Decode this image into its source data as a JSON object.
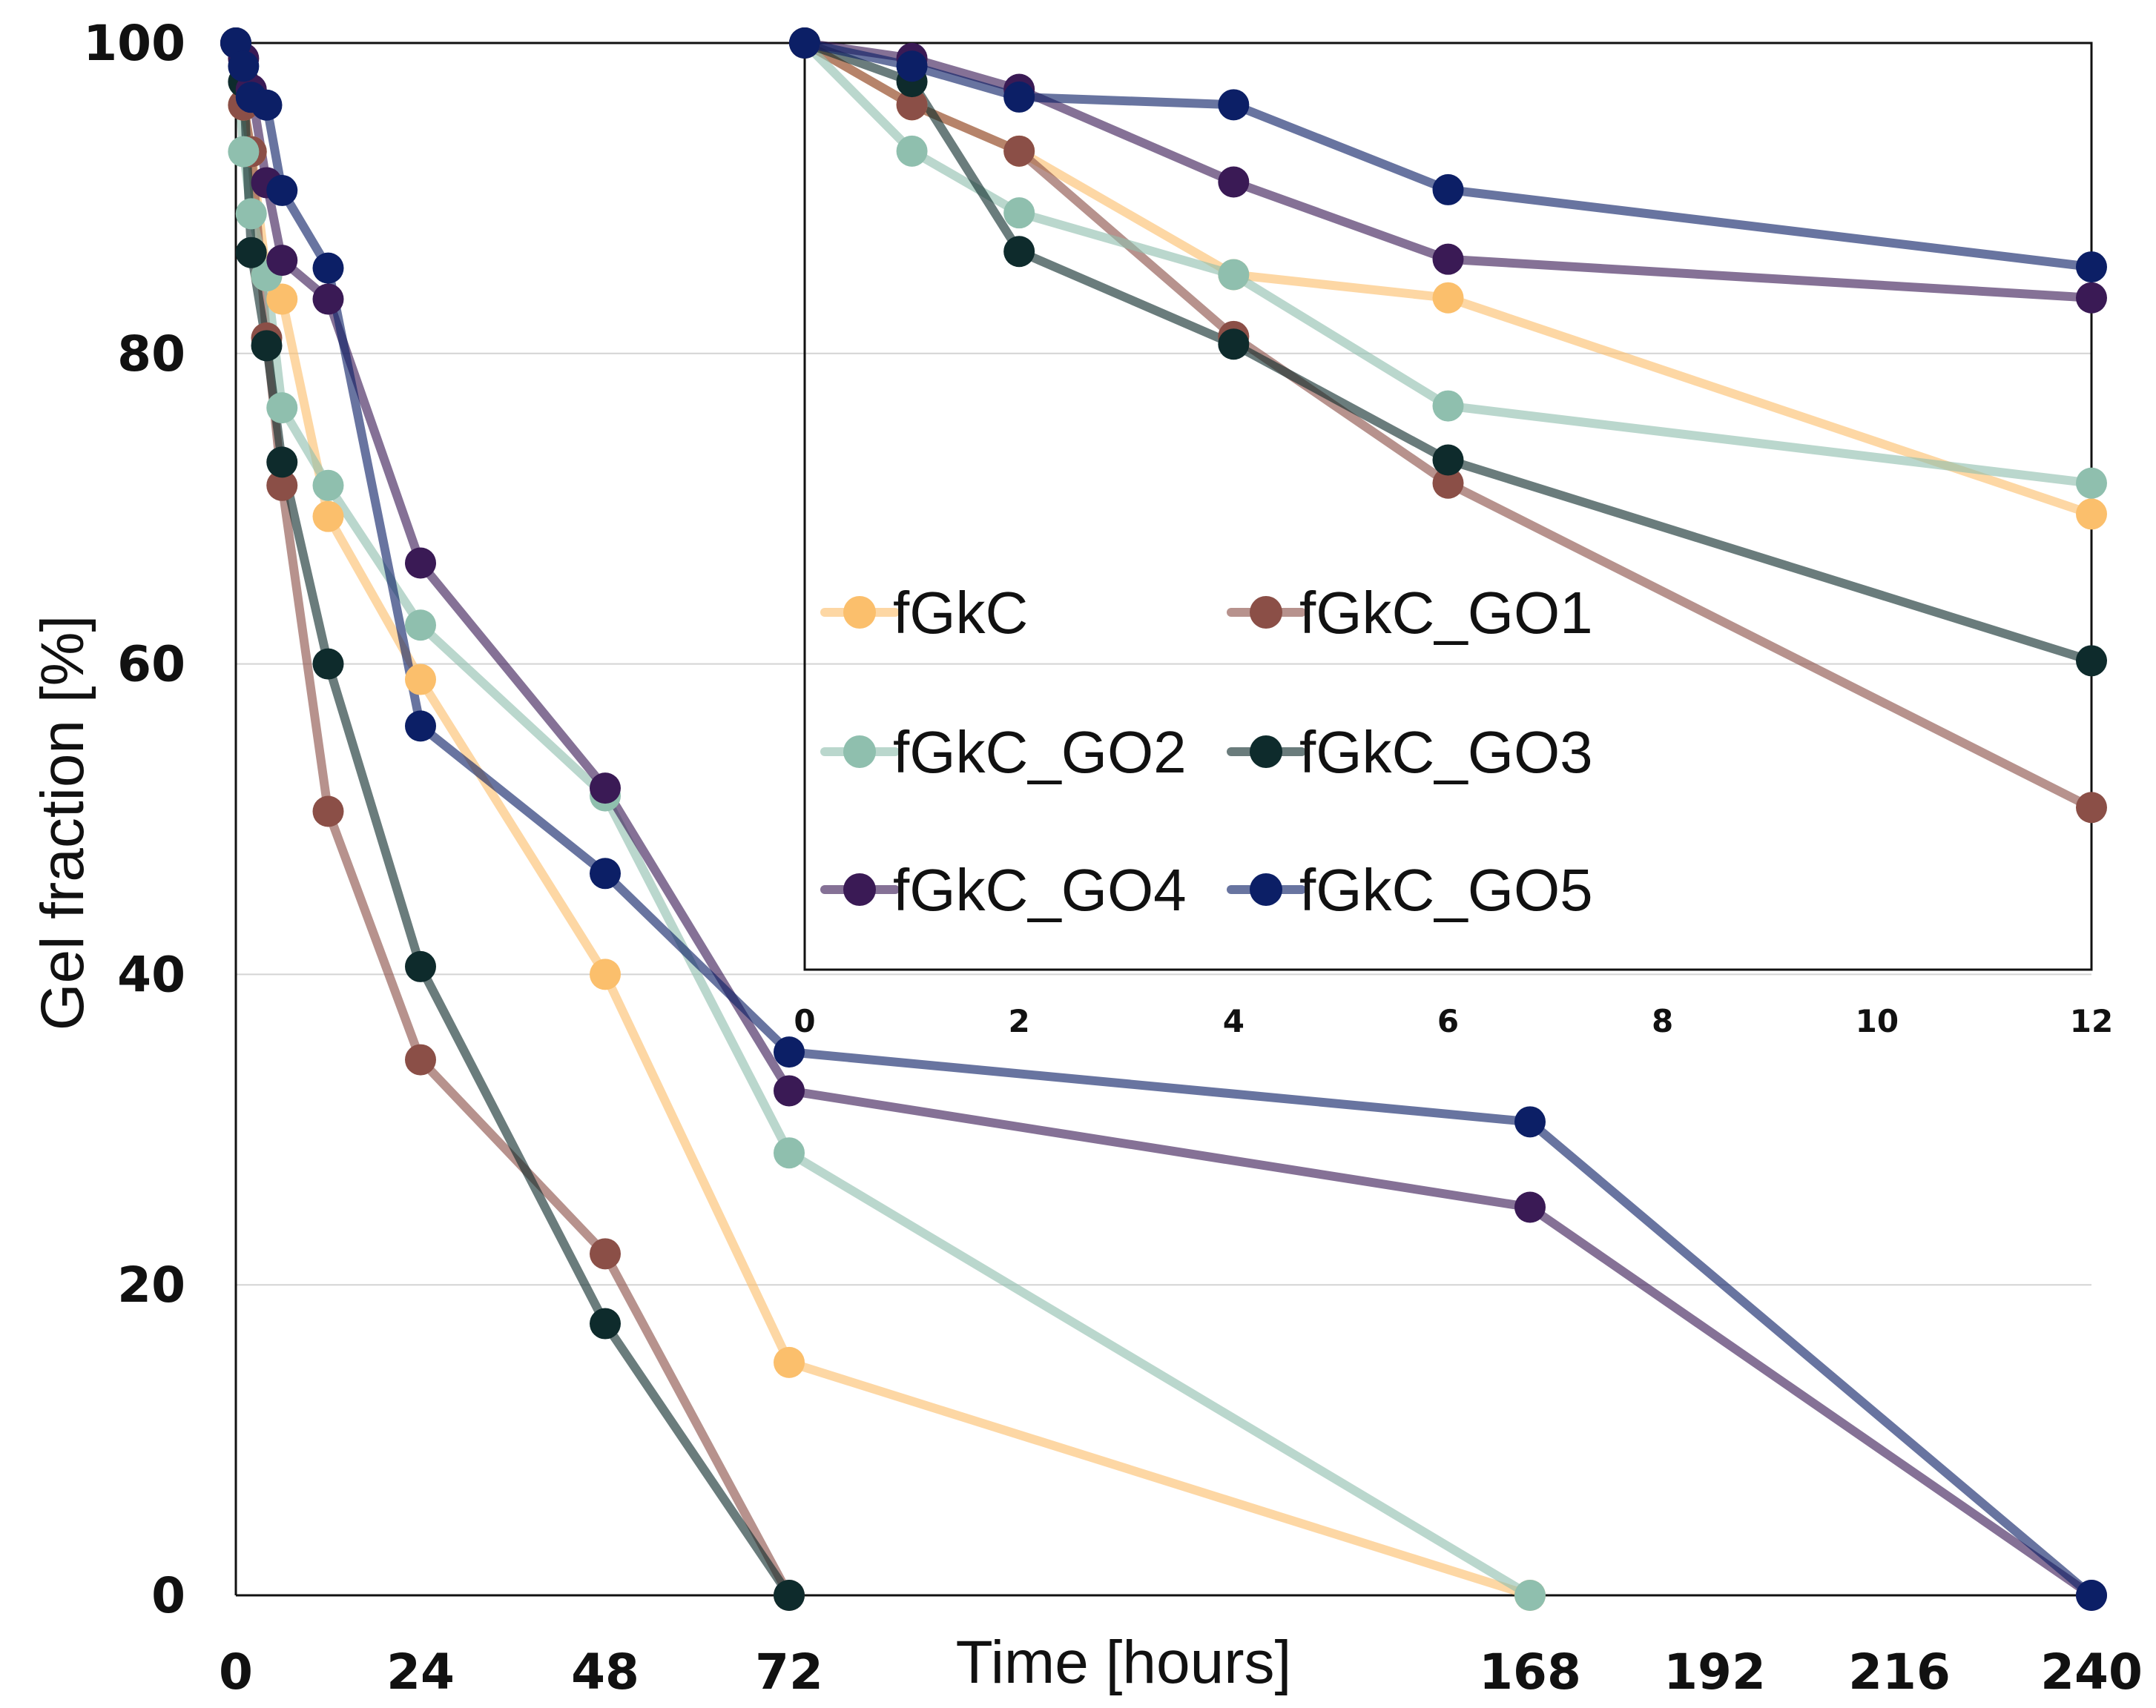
{
  "chart_data": [
    {
      "type": "line",
      "name": "main",
      "xlabel": "Time [hours]",
      "ylabel": "Gel fraction [%]",
      "xlim": [
        0,
        240
      ],
      "ylim": [
        0,
        100
      ],
      "x_tick_labels": [
        "0",
        "24",
        "48",
        "72",
        "168",
        "192",
        "216",
        "240"
      ],
      "x_tick_values": [
        0,
        24,
        48,
        72,
        168,
        192,
        216,
        240
      ],
      "y_tick_labels": [
        "0",
        "20",
        "40",
        "60",
        "80",
        "100"
      ],
      "y_tick_values": [
        0,
        20,
        40,
        60,
        80,
        100
      ],
      "series": [
        {
          "name": "fGkC",
          "color": "#fbbf6c",
          "x": [
            0,
            1,
            2,
            4,
            6,
            12,
            24,
            48,
            72,
            168
          ],
          "y": [
            100,
            96,
            93,
            85,
            83.5,
            69.5,
            59,
            40,
            15,
            0
          ]
        },
        {
          "name": "fGkC_GO1",
          "color": "#8b4f47",
          "x": [
            0,
            1,
            2,
            4,
            6,
            12,
            24,
            48,
            72
          ],
          "y": [
            100,
            96,
            93,
            81,
            71.5,
            50.5,
            34.5,
            22,
            0
          ]
        },
        {
          "name": "fGkC_GO2",
          "color": "#8fbfae",
          "x": [
            0,
            1,
            2,
            4,
            6,
            12,
            24,
            48,
            72,
            168
          ],
          "y": [
            100,
            93,
            89,
            85,
            76.5,
            71.5,
            62.5,
            51.5,
            28.5,
            0
          ]
        },
        {
          "name": "fGkC_GO3",
          "color": "#0e2b2c",
          "x": [
            0,
            1,
            2,
            4,
            6,
            12,
            24,
            48,
            72
          ],
          "y": [
            100,
            97.5,
            86.5,
            80.5,
            73,
            60,
            40.5,
            17.5,
            0
          ]
        },
        {
          "name": "fGkC_GO4",
          "color": "#3a1a55",
          "x": [
            0,
            1,
            2,
            4,
            6,
            12,
            24,
            48,
            72,
            168,
            240
          ],
          "y": [
            100,
            99,
            97,
            91,
            86,
            83.5,
            66.5,
            52,
            32.5,
            25,
            0
          ]
        },
        {
          "name": "fGkC_GO5",
          "color": "#0c1f66",
          "x": [
            0,
            1,
            2,
            4,
            6,
            12,
            24,
            48,
            72,
            168,
            240
          ],
          "y": [
            100,
            98.5,
            96.5,
            96,
            90.5,
            85.5,
            56,
            46.5,
            35,
            30.5,
            0
          ]
        }
      ]
    },
    {
      "type": "line",
      "name": "inset",
      "xlim": [
        0,
        12
      ],
      "ylim": [
        40,
        100
      ],
      "x_tick_labels": [
        "0",
        "2",
        "4",
        "6",
        "8",
        "10",
        "12"
      ],
      "x_tick_values": [
        0,
        2,
        4,
        6,
        8,
        10,
        12
      ],
      "series": [
        {
          "name": "fGkC",
          "color": "#fbbf6c",
          "x": [
            0,
            1,
            2,
            4,
            6,
            12
          ],
          "y": [
            100,
            96,
            93,
            85,
            83.5,
            69.5
          ]
        },
        {
          "name": "fGkC_GO1",
          "color": "#8b4f47",
          "x": [
            0,
            1,
            2,
            4,
            6,
            12
          ],
          "y": [
            100,
            96,
            93,
            81,
            71.5,
            50.5
          ]
        },
        {
          "name": "fGkC_GO2",
          "color": "#8fbfae",
          "x": [
            0,
            1,
            2,
            4,
            6,
            12
          ],
          "y": [
            100,
            93,
            89,
            85,
            76.5,
            71.5
          ]
        },
        {
          "name": "fGkC_GO3",
          "color": "#0e2b2c",
          "x": [
            0,
            1,
            2,
            4,
            6,
            12
          ],
          "y": [
            100,
            97.5,
            86.5,
            80.5,
            73,
            60
          ]
        },
        {
          "name": "fGkC_GO4",
          "color": "#3a1a55",
          "x": [
            0,
            1,
            2,
            4,
            6,
            12
          ],
          "y": [
            100,
            99,
            97,
            91,
            86,
            83.5
          ]
        },
        {
          "name": "fGkC_GO5",
          "color": "#0c1f66",
          "x": [
            0,
            1,
            2,
            4,
            6,
            12
          ],
          "y": [
            100,
            98.5,
            96.5,
            96,
            90.5,
            85.5
          ]
        }
      ]
    }
  ],
  "legend": [
    {
      "label": "fGkC",
      "color": "#fbbf6c"
    },
    {
      "label": "fGkC_GO1",
      "color": "#8b4f47"
    },
    {
      "label": "fGkC_GO2",
      "color": "#8fbfae"
    },
    {
      "label": "fGkC_GO3",
      "color": "#0e2b2c"
    },
    {
      "label": "fGkC_GO4",
      "color": "#3a1a55"
    },
    {
      "label": "fGkC_GO5",
      "color": "#0c1f66"
    }
  ]
}
